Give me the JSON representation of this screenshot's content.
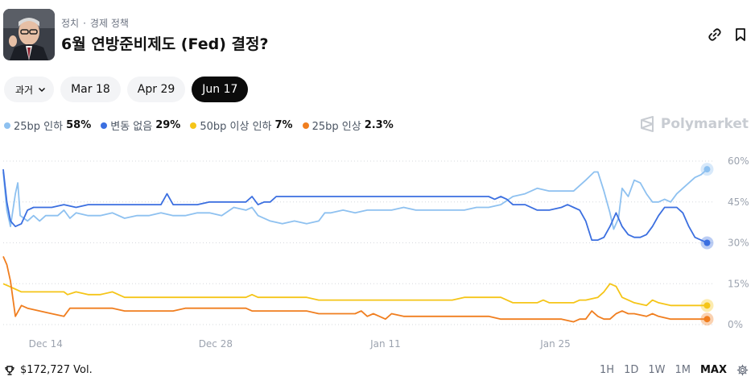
{
  "header": {
    "category": "정치",
    "subcategory": "경제 정책",
    "title": "6월 연방준비제도 (Fed) 결정?"
  },
  "tabs": [
    {
      "label": "과거"
    },
    {
      "label": "Mar 18"
    },
    {
      "label": "Apr 29"
    },
    {
      "label": "Jun 17",
      "active": true
    }
  ],
  "legend": [
    {
      "label": "25bp 인하",
      "pct": "58%",
      "color": "#8ec1f0"
    },
    {
      "label": "변동 없음",
      "pct": "29%",
      "color": "#3b6fe0"
    },
    {
      "label": "50bp 이상 인하",
      "pct": "7%",
      "color": "#f5c518"
    },
    {
      "label": "25bp 인상",
      "pct": "2.3%",
      "color": "#f07e1f"
    }
  ],
  "brand": "Polymarket",
  "volume": "$172,727 Vol.",
  "ranges": [
    "1H",
    "1D",
    "1W",
    "1M",
    "MAX"
  ],
  "active_range": "MAX",
  "chart_data": {
    "type": "line",
    "x_tick_labels": [
      "Dec 14",
      "Dec 28",
      "Jan 11",
      "Jan 25"
    ],
    "x_tick_positions": [
      3.5,
      17.5,
      31.5,
      45.5
    ],
    "xlim": [
      0,
      58.5
    ],
    "ylim": [
      0,
      60
    ],
    "y_ticks": [
      0,
      15,
      30,
      45,
      60
    ],
    "y_tick_labels": [
      "0%",
      "15%",
      "30%",
      "45%",
      "60%"
    ],
    "grid": true,
    "series": [
      {
        "name": "25bp 인하",
        "color": "#8ec1f0",
        "points": [
          [
            0,
            56
          ],
          [
            0.3,
            42
          ],
          [
            0.6,
            36
          ],
          [
            1,
            48
          ],
          [
            1.2,
            52
          ],
          [
            1.4,
            40
          ],
          [
            2,
            38
          ],
          [
            2.5,
            40
          ],
          [
            3,
            38
          ],
          [
            3.5,
            40
          ],
          [
            4.5,
            40
          ],
          [
            5,
            42
          ],
          [
            5.5,
            39
          ],
          [
            6,
            41
          ],
          [
            7,
            40
          ],
          [
            8,
            40
          ],
          [
            9,
            41
          ],
          [
            10,
            39
          ],
          [
            11,
            40
          ],
          [
            12,
            40
          ],
          [
            13,
            41
          ],
          [
            14,
            40
          ],
          [
            15,
            40
          ],
          [
            16,
            41
          ],
          [
            17,
            41
          ],
          [
            18,
            40
          ],
          [
            19,
            43
          ],
          [
            20,
            42
          ],
          [
            20.5,
            43
          ],
          [
            21,
            40
          ],
          [
            22,
            38
          ],
          [
            23,
            37
          ],
          [
            24,
            38
          ],
          [
            25,
            37
          ],
          [
            26,
            38
          ],
          [
            26.5,
            41
          ],
          [
            27,
            41
          ],
          [
            28,
            42
          ],
          [
            29,
            41
          ],
          [
            30,
            42
          ],
          [
            31,
            42
          ],
          [
            32,
            42
          ],
          [
            33,
            43
          ],
          [
            34,
            42
          ],
          [
            35,
            42
          ],
          [
            36,
            42
          ],
          [
            37,
            42
          ],
          [
            38,
            42
          ],
          [
            39,
            43
          ],
          [
            40,
            43
          ],
          [
            41,
            44
          ],
          [
            42,
            47
          ],
          [
            43,
            48
          ],
          [
            44,
            50
          ],
          [
            45,
            49
          ],
          [
            46,
            49
          ],
          [
            47,
            49
          ],
          [
            48,
            53
          ],
          [
            48.7,
            56
          ],
          [
            49,
            56
          ],
          [
            49.5,
            49
          ],
          [
            50,
            41
          ],
          [
            50.3,
            35
          ],
          [
            50.7,
            39
          ],
          [
            51,
            50
          ],
          [
            51.5,
            47
          ],
          [
            52,
            53
          ],
          [
            52.5,
            52
          ],
          [
            53,
            48
          ],
          [
            53.5,
            45
          ],
          [
            54,
            45
          ],
          [
            54.5,
            46
          ],
          [
            55,
            45
          ],
          [
            55.5,
            48
          ],
          [
            56,
            50
          ],
          [
            57,
            54
          ],
          [
            57.5,
            55
          ],
          [
            58,
            57
          ]
        ]
      },
      {
        "name": "변동 없음",
        "color": "#3b6fe0",
        "points": [
          [
            0,
            57
          ],
          [
            0.3,
            45
          ],
          [
            0.6,
            38
          ],
          [
            1,
            36
          ],
          [
            1.5,
            37
          ],
          [
            2,
            42
          ],
          [
            2.5,
            43
          ],
          [
            3,
            43
          ],
          [
            4,
            43
          ],
          [
            5,
            44
          ],
          [
            6,
            43
          ],
          [
            7,
            44
          ],
          [
            8,
            44
          ],
          [
            9,
            44
          ],
          [
            10,
            44
          ],
          [
            11,
            44
          ],
          [
            12,
            44
          ],
          [
            13,
            44
          ],
          [
            13.5,
            48
          ],
          [
            14,
            44
          ],
          [
            15,
            44
          ],
          [
            16,
            44
          ],
          [
            17,
            45
          ],
          [
            18,
            45
          ],
          [
            19,
            45
          ],
          [
            20,
            45
          ],
          [
            20.5,
            47
          ],
          [
            21,
            44
          ],
          [
            21.5,
            45
          ],
          [
            22,
            45
          ],
          [
            22.5,
            47
          ],
          [
            23,
            47
          ],
          [
            24,
            47
          ],
          [
            25,
            47
          ],
          [
            26,
            47
          ],
          [
            27,
            47
          ],
          [
            28,
            47
          ],
          [
            29,
            47
          ],
          [
            30,
            47
          ],
          [
            31,
            47
          ],
          [
            32,
            47
          ],
          [
            33,
            47
          ],
          [
            34,
            47
          ],
          [
            35,
            47
          ],
          [
            36,
            47
          ],
          [
            37,
            47
          ],
          [
            38,
            47
          ],
          [
            39,
            47
          ],
          [
            40,
            47
          ],
          [
            40.5,
            46
          ],
          [
            41,
            47
          ],
          [
            41.5,
            46
          ],
          [
            42,
            44
          ],
          [
            43,
            44
          ],
          [
            44,
            42
          ],
          [
            45,
            42
          ],
          [
            46,
            43
          ],
          [
            46.5,
            44
          ],
          [
            47,
            43
          ],
          [
            47.5,
            42
          ],
          [
            48,
            38
          ],
          [
            48.5,
            31
          ],
          [
            49,
            31
          ],
          [
            49.5,
            32
          ],
          [
            50,
            36
          ],
          [
            50.5,
            41
          ],
          [
            51,
            36
          ],
          [
            51.5,
            33
          ],
          [
            52,
            32
          ],
          [
            52.5,
            32
          ],
          [
            53,
            33
          ],
          [
            53.5,
            36
          ],
          [
            54,
            40
          ],
          [
            54.5,
            43
          ],
          [
            55,
            43
          ],
          [
            55.5,
            43
          ],
          [
            56,
            41
          ],
          [
            56.5,
            36
          ],
          [
            57,
            32
          ],
          [
            57.5,
            31
          ],
          [
            58,
            30
          ]
        ]
      },
      {
        "name": "50bp 이상 인하",
        "color": "#f5c518",
        "points": [
          [
            0,
            15
          ],
          [
            0.5,
            14
          ],
          [
            1,
            13
          ],
          [
            1.5,
            12
          ],
          [
            2,
            12
          ],
          [
            3,
            12
          ],
          [
            4,
            12
          ],
          [
            5,
            12
          ],
          [
            5.3,
            11
          ],
          [
            6,
            12
          ],
          [
            7,
            11
          ],
          [
            8,
            11
          ],
          [
            9,
            12
          ],
          [
            9.5,
            11
          ],
          [
            10,
            10
          ],
          [
            11,
            10
          ],
          [
            12,
            10
          ],
          [
            13,
            10
          ],
          [
            14,
            10
          ],
          [
            15,
            10
          ],
          [
            16,
            10
          ],
          [
            17,
            10
          ],
          [
            18,
            10
          ],
          [
            19,
            10
          ],
          [
            20,
            10
          ],
          [
            20.5,
            11
          ],
          [
            21,
            10
          ],
          [
            22,
            10
          ],
          [
            23,
            10
          ],
          [
            24,
            10
          ],
          [
            25,
            10
          ],
          [
            26,
            9
          ],
          [
            27,
            9
          ],
          [
            28,
            9
          ],
          [
            29,
            9
          ],
          [
            30,
            9
          ],
          [
            31,
            9
          ],
          [
            32,
            9
          ],
          [
            33,
            9
          ],
          [
            34,
            9
          ],
          [
            35,
            9
          ],
          [
            36,
            9
          ],
          [
            37,
            9
          ],
          [
            38,
            10
          ],
          [
            39,
            10
          ],
          [
            40,
            10
          ],
          [
            41,
            10
          ],
          [
            42,
            8
          ],
          [
            43,
            8
          ],
          [
            44,
            8
          ],
          [
            44.5,
            9
          ],
          [
            45,
            8
          ],
          [
            46,
            8
          ],
          [
            47,
            8
          ],
          [
            47.5,
            9
          ],
          [
            48,
            9
          ],
          [
            49,
            10
          ],
          [
            49.5,
            12
          ],
          [
            50,
            15
          ],
          [
            50.5,
            14
          ],
          [
            51,
            10
          ],
          [
            51.5,
            9
          ],
          [
            52,
            8
          ],
          [
            53,
            7
          ],
          [
            53.5,
            9
          ],
          [
            54,
            8
          ],
          [
            55,
            7
          ],
          [
            56,
            7
          ],
          [
            57,
            7
          ],
          [
            58,
            7
          ]
        ]
      },
      {
        "name": "25bp 인상",
        "color": "#f07e1f",
        "points": [
          [
            0,
            25
          ],
          [
            0.3,
            22
          ],
          [
            0.6,
            16
          ],
          [
            1,
            3
          ],
          [
            1.5,
            7
          ],
          [
            2,
            6
          ],
          [
            3,
            5
          ],
          [
            4,
            4
          ],
          [
            5,
            3
          ],
          [
            5.5,
            6
          ],
          [
            6,
            6
          ],
          [
            7,
            6
          ],
          [
            8,
            6
          ],
          [
            9,
            6
          ],
          [
            10,
            5
          ],
          [
            11,
            5
          ],
          [
            12,
            5
          ],
          [
            13,
            5
          ],
          [
            14,
            5
          ],
          [
            15,
            6
          ],
          [
            16,
            6
          ],
          [
            17,
            6
          ],
          [
            18,
            6
          ],
          [
            19,
            6
          ],
          [
            20,
            6
          ],
          [
            20.5,
            5
          ],
          [
            21,
            5
          ],
          [
            22,
            5
          ],
          [
            23,
            5
          ],
          [
            24,
            5
          ],
          [
            25,
            5
          ],
          [
            26,
            4
          ],
          [
            27,
            4
          ],
          [
            28,
            4
          ],
          [
            29,
            4
          ],
          [
            29.5,
            5
          ],
          [
            30,
            3
          ],
          [
            30.5,
            4
          ],
          [
            31,
            3
          ],
          [
            31.5,
            2
          ],
          [
            32,
            4
          ],
          [
            33,
            3
          ],
          [
            34,
            3
          ],
          [
            35,
            3
          ],
          [
            36,
            3
          ],
          [
            37,
            3
          ],
          [
            38,
            3
          ],
          [
            39,
            3
          ],
          [
            40,
            3
          ],
          [
            41,
            2
          ],
          [
            42,
            2
          ],
          [
            43,
            2
          ],
          [
            44,
            2
          ],
          [
            45,
            2
          ],
          [
            46,
            2
          ],
          [
            47,
            1
          ],
          [
            47.5,
            2
          ],
          [
            48,
            2
          ],
          [
            48.5,
            5
          ],
          [
            49,
            3
          ],
          [
            49.5,
            2
          ],
          [
            50,
            2
          ],
          [
            50.5,
            4
          ],
          [
            51,
            5
          ],
          [
            51.5,
            4
          ],
          [
            52,
            4
          ],
          [
            53,
            3
          ],
          [
            53.5,
            4
          ],
          [
            54,
            3
          ],
          [
            55,
            2
          ],
          [
            56,
            2
          ],
          [
            57,
            2
          ],
          [
            58,
            2
          ]
        ]
      }
    ]
  }
}
